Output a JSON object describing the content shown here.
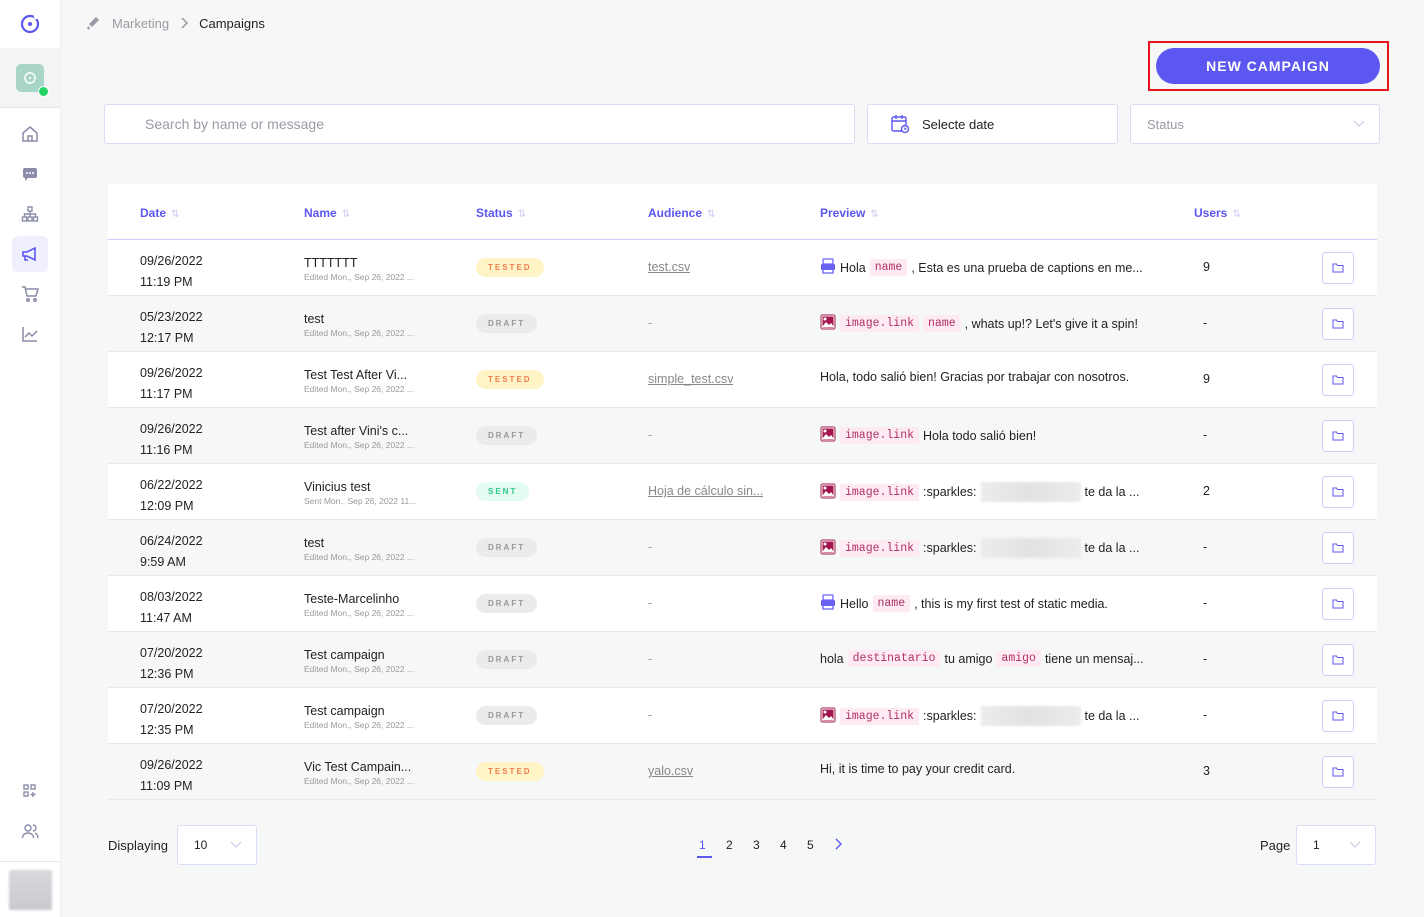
{
  "breadcrumb": {
    "parent": "Marketing",
    "current": "Campaigns"
  },
  "actions": {
    "new_campaign": "NEW CAMPAIGN"
  },
  "filters": {
    "search_placeholder": "Search by name or message",
    "date_label": "Selecte date",
    "status_placeholder": "Status"
  },
  "colors": {
    "accent": "#5b57f0",
    "tested": "#f37c4f",
    "sent": "#2ecc87",
    "draft": "#999999"
  },
  "table": {
    "headers": [
      "Date",
      "Name",
      "Status",
      "Audience",
      "Preview",
      "Users"
    ],
    "rows": [
      {
        "date": "09/26/2022",
        "time": "11:19 PM",
        "name": "TTTTTTT",
        "sub": "Edited Mon., Sep 26, 2022 ...",
        "status": "TESTED",
        "audience": "test.csv",
        "preview": {
          "icon": "pdf",
          "parts": [
            {
              "type": "text",
              "value": "Hola"
            },
            {
              "type": "tag",
              "value": "name"
            },
            {
              "type": "text",
              "value": ", Esta es una prueba de captions en me..."
            }
          ]
        },
        "users": "9"
      },
      {
        "date": "05/23/2022",
        "time": "12:17 PM",
        "name": "test",
        "sub": "Edited Mon., Sep 26, 2022 ...",
        "status": "DRAFT",
        "audience": "-",
        "preview": {
          "icon": "image",
          "parts": [
            {
              "type": "tag",
              "value": "image.link"
            },
            {
              "type": "tag",
              "value": "name"
            },
            {
              "type": "text",
              "value": ", whats up!? Let's give it a spin!"
            }
          ]
        },
        "users": "-"
      },
      {
        "date": "09/26/2022",
        "time": "11:17 PM",
        "name": "Test Test After Vi...",
        "sub": "Edited Mon., Sep 26, 2022 ...",
        "status": "TESTED",
        "audience": "simple_test.csv",
        "preview": {
          "icon": "none",
          "parts": [
            {
              "type": "text",
              "value": "Hola, todo salió bien! Gracias por trabajar con nosotros."
            }
          ]
        },
        "users": "9"
      },
      {
        "date": "09/26/2022",
        "time": "11:16 PM",
        "name": "Test after Vini's c...",
        "sub": "Edited Mon., Sep 26, 2022 ...",
        "status": "DRAFT",
        "audience": "-",
        "preview": {
          "icon": "image",
          "parts": [
            {
              "type": "tag",
              "value": "image.link"
            },
            {
              "type": "text",
              "value": "Hola todo salió bien!"
            }
          ]
        },
        "users": "-"
      },
      {
        "date": "06/22/2022",
        "time": "12:09 PM",
        "name": "Vinicius test",
        "sub": "Sent Mon., Sep 26, 2022 11...",
        "status": "SENT",
        "audience": "Hoja de cálculo sin...",
        "preview": {
          "icon": "image",
          "parts": [
            {
              "type": "tag",
              "value": "image.link"
            },
            {
              "type": "text",
              "value": ":sparkles:"
            },
            {
              "type": "blur",
              "value": ""
            },
            {
              "type": "text",
              "value": "te da la ..."
            }
          ]
        },
        "users": "2"
      },
      {
        "date": "06/24/2022",
        "time": "9:59 AM",
        "name": "test",
        "sub": "Edited Mon., Sep 26, 2022 ...",
        "status": "DRAFT",
        "audience": "-",
        "preview": {
          "icon": "image",
          "parts": [
            {
              "type": "tag",
              "value": "image.link"
            },
            {
              "type": "text",
              "value": ":sparkles:"
            },
            {
              "type": "blur",
              "value": ""
            },
            {
              "type": "text",
              "value": "te da la ..."
            }
          ]
        },
        "users": "-"
      },
      {
        "date": "08/03/2022",
        "time": "11:47 AM",
        "name": "Teste-Marcelinho",
        "sub": "Edited Mon., Sep 26, 2022 ...",
        "status": "DRAFT",
        "audience": "-",
        "preview": {
          "icon": "pdf",
          "parts": [
            {
              "type": "text",
              "value": "Hello"
            },
            {
              "type": "tag",
              "value": "name"
            },
            {
              "type": "text",
              "value": ", this is my first test of static media."
            }
          ]
        },
        "users": "-"
      },
      {
        "date": "07/20/2022",
        "time": "12:36 PM",
        "name": "Test campaign",
        "sub": "Edited Mon., Sep 26, 2022 ...",
        "status": "DRAFT",
        "audience": "-",
        "preview": {
          "icon": "none",
          "parts": [
            {
              "type": "text",
              "value": "hola"
            },
            {
              "type": "tag",
              "value": "destinatario"
            },
            {
              "type": "text",
              "value": "tu amigo"
            },
            {
              "type": "tag",
              "value": "amigo"
            },
            {
              "type": "text",
              "value": "tiene un mensaj..."
            }
          ]
        },
        "users": "-"
      },
      {
        "date": "07/20/2022",
        "time": "12:35 PM",
        "name": "Test campaign",
        "sub": "Edited Mon., Sep 26, 2022 ...",
        "status": "DRAFT",
        "audience": "-",
        "preview": {
          "icon": "image",
          "parts": [
            {
              "type": "tag",
              "value": "image.link"
            },
            {
              "type": "text",
              "value": ":sparkles:"
            },
            {
              "type": "blur",
              "value": ""
            },
            {
              "type": "text",
              "value": "te da la ..."
            }
          ]
        },
        "users": "-"
      },
      {
        "date": "09/26/2022",
        "time": "11:09 PM",
        "name": "Vic Test Campain...",
        "sub": "Edited Mon., Sep 26, 2022 ...",
        "status": "TESTED",
        "audience": "yalo.csv",
        "preview": {
          "icon": "none",
          "parts": [
            {
              "type": "text",
              "value": "Hi, it is time to pay your credit card."
            }
          ]
        },
        "users": "3"
      }
    ]
  },
  "footer": {
    "displaying_label": "Displaying",
    "per_page": "10",
    "pages": [
      "1",
      "2",
      "3",
      "4",
      "5"
    ],
    "current_page_index": 0,
    "page_label": "Page",
    "page_value": "1"
  }
}
